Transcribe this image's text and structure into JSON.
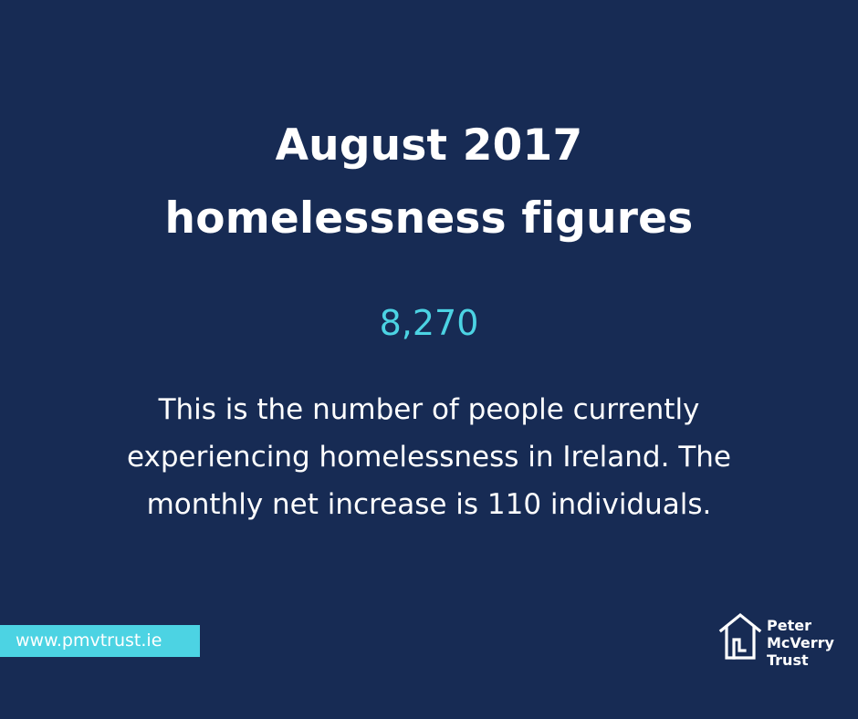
{
  "title": {
    "line1": "August 2017",
    "line2": "homelessness figures"
  },
  "stat": {
    "value": "8,270"
  },
  "description": {
    "line1": "This is the number of people currently",
    "line2": "experiencing homelessness in Ireland. The",
    "line3": "monthly net increase is 110 individuals."
  },
  "footer": {
    "url": "www.pmvtrust.ie"
  },
  "logo": {
    "line1": "Peter",
    "line2": "McVerry",
    "line3": "Trust",
    "icon": "house-icon"
  },
  "colors": {
    "background": "#172b54",
    "accent": "#4cd3e3",
    "text": "#ffffff"
  }
}
